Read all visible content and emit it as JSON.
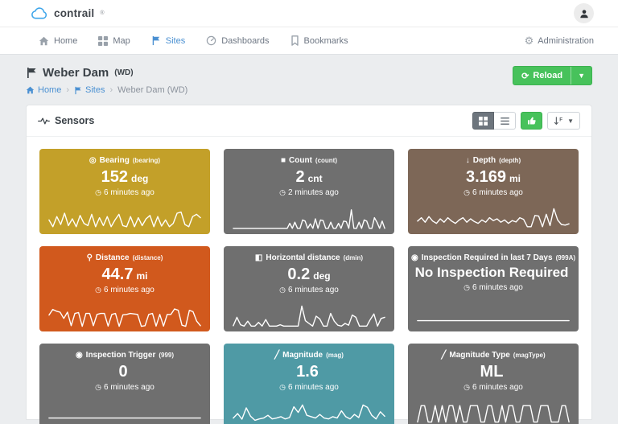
{
  "topbar": {
    "brand": "contrail",
    "brand_mark": "®"
  },
  "nav": {
    "items": [
      {
        "label": "Home",
        "icon": "home-icon",
        "active": false
      },
      {
        "label": "Map",
        "icon": "map-icon",
        "active": false
      },
      {
        "label": "Sites",
        "icon": "flag-icon",
        "active": true
      },
      {
        "label": "Dashboards",
        "icon": "gauge-icon",
        "active": false
      },
      {
        "label": "Bookmarks",
        "icon": "bookmark-icon",
        "active": false
      }
    ],
    "admin_label": "Administration"
  },
  "page": {
    "title": "Weber Dam",
    "title_code": "(WD)",
    "breadcrumb": {
      "home": "Home",
      "sites": "Sites",
      "current": "Weber Dam (WD)"
    },
    "reload_label": "Reload"
  },
  "panel": {
    "title": "Sensors"
  },
  "colors": {
    "accent_green": "#47c25b",
    "accent_blue": "#4a90d2",
    "card_gold": "#c3a029",
    "card_gray": "#6f6f6f",
    "card_brown": "#7d6757",
    "card_orange": "#d1591d",
    "card_teal": "#4f9aa5"
  },
  "sensors": {
    "cards": [
      {
        "icon": "compass",
        "title": "Bearing",
        "code": "(bearing)",
        "value": "152",
        "unit": "deg",
        "updated": "6 minutes ago",
        "color": "#c3a029",
        "spark": [
          45,
          15,
          60,
          25,
          75,
          20,
          50,
          15,
          65,
          30,
          20,
          70,
          15,
          55,
          20,
          60,
          15,
          45,
          70,
          20,
          15,
          60,
          15,
          55,
          20,
          50,
          65,
          15,
          60,
          18,
          45,
          15,
          30,
          75,
          80,
          25,
          15,
          60,
          70,
          55
        ]
      },
      {
        "icon": "square",
        "title": "Count",
        "code": "(count)",
        "value": "2",
        "unit": "cnt",
        "updated": "2 minutes ago",
        "color": "#6f6f6f",
        "spark": [
          8,
          8,
          8,
          8,
          8,
          8,
          8,
          8,
          8,
          8,
          8,
          8,
          8,
          8,
          8,
          8,
          8,
          8,
          8,
          8,
          8,
          8,
          30,
          8,
          35,
          8,
          8,
          45,
          40,
          8,
          28,
          8,
          50,
          8,
          45,
          42,
          8,
          8,
          35,
          8,
          8,
          30,
          8,
          40,
          38,
          8,
          90,
          8,
          8,
          35,
          8,
          45,
          40,
          8,
          8,
          55,
          35,
          8,
          40,
          8
        ]
      },
      {
        "icon": "arrow-down",
        "title": "Depth",
        "code": "(depth)",
        "value": "3.169",
        "unit": "mi",
        "updated": "6 minutes ago",
        "color": "#7d6757",
        "spark": [
          40,
          55,
          35,
          60,
          40,
          30,
          50,
          35,
          55,
          40,
          30,
          45,
          55,
          35,
          50,
          38,
          30,
          45,
          35,
          55,
          42,
          50,
          35,
          45,
          30,
          42,
          36,
          55,
          48,
          15,
          15,
          65,
          62,
          15,
          70,
          20,
          95,
          45,
          25,
          22,
          28
        ]
      },
      {
        "icon": "street-view",
        "title": "Distance",
        "code": "(distance)",
        "value": "44.7",
        "unit": "mi",
        "updated": "6 minutes ago",
        "color": "#d1591d",
        "spark": [
          55,
          80,
          72,
          68,
          40,
          68,
          8,
          62,
          66,
          5,
          62,
          62,
          8,
          58,
          62,
          62,
          6,
          58,
          62,
          5,
          56,
          58,
          62,
          60,
          58,
          5,
          8,
          58,
          62,
          6,
          58,
          6,
          58,
          58,
          82,
          76,
          10,
          5,
          76,
          70,
          28,
          8
        ]
      },
      {
        "icon": "half-square",
        "title": "Horizontal distance",
        "code": "(dmin)",
        "value": "0.2",
        "unit": "deg",
        "updated": "6 minutes ago",
        "color": "#6f6f6f",
        "spark": [
          8,
          45,
          12,
          6,
          28,
          6,
          6,
          22,
          6,
          35,
          6,
          6,
          6,
          12,
          6,
          6,
          6,
          6,
          6,
          95,
          30,
          18,
          6,
          50,
          38,
          6,
          6,
          62,
          28,
          10,
          6,
          18,
          10,
          55,
          45,
          6,
          6,
          6,
          35,
          60,
          6,
          40,
          45
        ]
      },
      {
        "icon": "dot-circle",
        "title": "Inspection Required in last 7 Days",
        "code": "(999A)",
        "value": "No Inspection Required",
        "unit": "",
        "updated": "6 minutes ago",
        "color": "#6f6f6f",
        "spark": [
          30,
          30
        ]
      },
      {
        "icon": "dot-circle",
        "title": "Inspection Trigger",
        "code": "(999)",
        "value": "0",
        "unit": "",
        "updated": "6 minutes ago",
        "color": "#6f6f6f",
        "spark": [
          30,
          30
        ]
      },
      {
        "icon": "slash",
        "title": "Magnitude",
        "code": "(mag)",
        "value": "1.6",
        "unit": "",
        "updated": "6 minutes ago",
        "color": "#4f9aa5",
        "spark": [
          30,
          50,
          25,
          75,
          38,
          20,
          26,
          30,
          42,
          26,
          30,
          36,
          26,
          32,
          80,
          55,
          88,
          42,
          36,
          30,
          46,
          30,
          26,
          36,
          30,
          62,
          36,
          26,
          46,
          32,
          88,
          78,
          42,
          26,
          58,
          38
        ]
      },
      {
        "icon": "slash",
        "title": "Magnitude Type",
        "code": "(magType)",
        "value": "ML",
        "unit": "",
        "updated": "6 minutes ago",
        "color": "#6f6f6f",
        "spark": [
          12,
          85,
          85,
          12,
          12,
          85,
          12,
          85,
          12,
          85,
          85,
          12,
          85,
          12,
          12,
          85,
          85,
          85,
          12,
          12,
          85,
          85,
          12,
          12,
          85,
          12,
          85,
          85,
          12,
          12,
          85,
          85,
          85,
          12,
          12,
          85,
          85,
          85,
          12,
          12,
          12,
          85,
          85,
          12
        ]
      }
    ]
  }
}
